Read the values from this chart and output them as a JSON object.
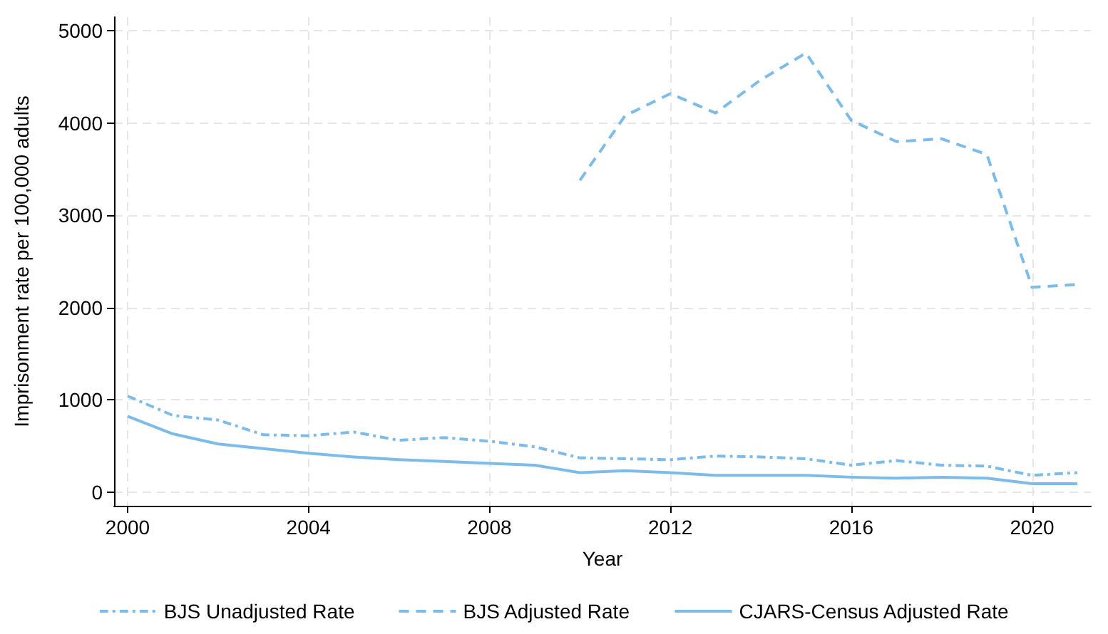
{
  "chart_data": {
    "type": "line",
    "xlabel": "Year",
    "ylabel": "Imprisonment rate per 100,000 adults",
    "x": [
      2000,
      2001,
      2002,
      2003,
      2004,
      2005,
      2006,
      2007,
      2008,
      2009,
      2010,
      2011,
      2012,
      2013,
      2014,
      2015,
      2016,
      2017,
      2018,
      2019,
      2020,
      2021
    ],
    "series": [
      {
        "name": "BJS Unadjusted Rate",
        "color": "#7dbce8",
        "line_style": "dashdot",
        "values": [
          1040,
          830,
          780,
          620,
          610,
          650,
          560,
          590,
          550,
          490,
          370,
          360,
          350,
          390,
          380,
          360,
          290,
          340,
          290,
          280,
          180,
          210
        ]
      },
      {
        "name": "BJS Adjusted Rate",
        "color": "#7dbce8",
        "line_style": "dashed",
        "values": [
          null,
          null,
          null,
          null,
          null,
          null,
          null,
          null,
          null,
          null,
          3380,
          4080,
          4320,
          4110,
          4470,
          4760,
          4030,
          3800,
          3830,
          3660,
          2220,
          2250
        ]
      },
      {
        "name": "CJARS-Census Adjusted Rate",
        "color": "#7dbce8",
        "line_style": "solid",
        "values": [
          820,
          630,
          520,
          470,
          420,
          380,
          350,
          330,
          310,
          290,
          210,
          230,
          210,
          180,
          180,
          180,
          160,
          150,
          160,
          150,
          90,
          90
        ]
      }
    ],
    "xlim": [
      1999.7,
      2021.3
    ],
    "xticks": [
      2000,
      2004,
      2008,
      2012,
      2016,
      2020
    ],
    "ylim": [
      -150,
      5150
    ],
    "yticks": [
      0,
      1000,
      2000,
      3000,
      4000,
      5000
    ],
    "grid": true,
    "legend": "bottom",
    "marker": "none"
  }
}
